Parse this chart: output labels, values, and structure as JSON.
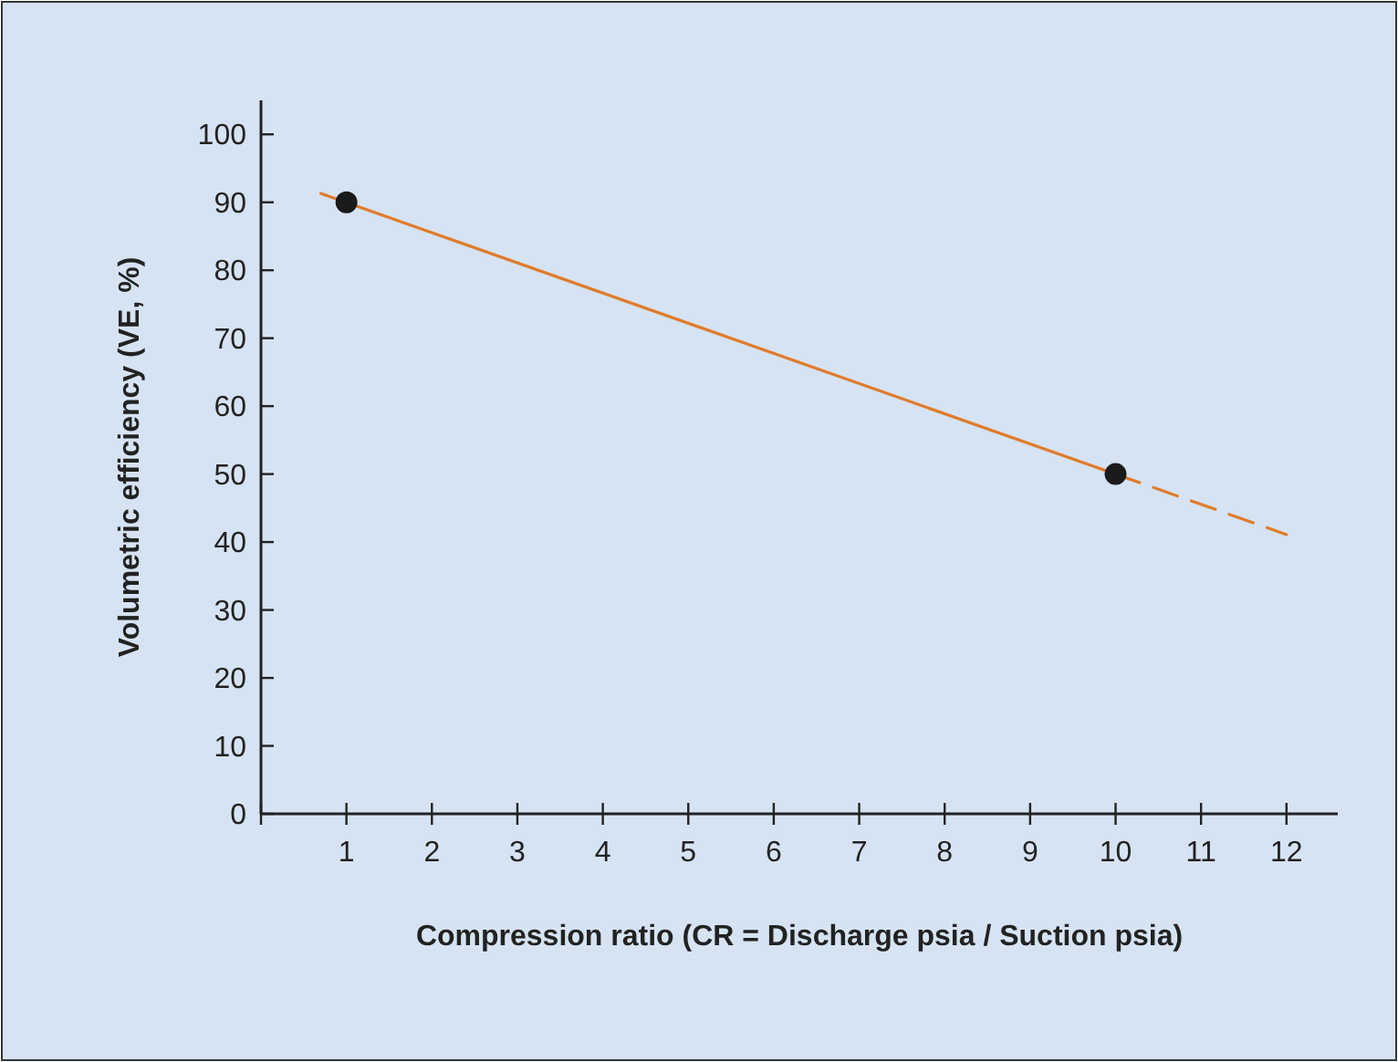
{
  "chart_data": {
    "type": "line",
    "xlabel": "Compression ratio (CR = Discharge psia / Suction psia)",
    "ylabel": "Volumetric efficiency (VE, %)",
    "xlim": [
      0,
      12.6
    ],
    "xticks": [
      {
        "value": 0,
        "label": null
      },
      1,
      2,
      3,
      4,
      5,
      6,
      7,
      8,
      9,
      10,
      11,
      12
    ],
    "ylim": [
      0,
      105
    ],
    "yticks": [
      0,
      10,
      20,
      30,
      40,
      50,
      60,
      70,
      80,
      90,
      100
    ],
    "grid": false,
    "series": [
      {
        "color": "#e07b2a",
        "x": [
          0.7,
          10
        ],
        "values": [
          91.3,
          50
        ],
        "line_style": "solid",
        "marker": "none"
      },
      {
        "color": "#e07b2a",
        "x": [
          10,
          12
        ],
        "values": [
          50,
          41.1
        ],
        "line_style": "dashed",
        "marker": "none"
      },
      {
        "type": "scatter",
        "color": "#1a1a1a",
        "x": [
          1,
          10
        ],
        "values": [
          90,
          50
        ],
        "marker": "circle"
      }
    ]
  }
}
